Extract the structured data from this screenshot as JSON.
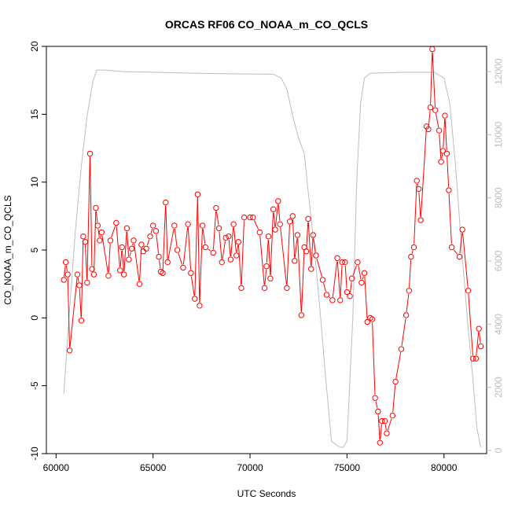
{
  "chart_data": {
    "type": "line",
    "title": "ORCAS RF06 CO_NOAA_m_CO_QCLS",
    "xlabel": "UTC Seconds",
    "ylabel": "CO_NOAA_m_CO_QCLS",
    "xlim": [
      59500,
      82200
    ],
    "ylim": [
      -10,
      20
    ],
    "y2lim": [
      -100,
      12800
    ],
    "x_ticks": [
      60000,
      65000,
      70000,
      75000,
      80000
    ],
    "y_ticks": [
      -10,
      -5,
      0,
      5,
      10,
      15,
      20
    ],
    "y2_ticks": [
      0,
      2000,
      4000,
      6000,
      8000,
      10000,
      12000
    ],
    "grid": false,
    "colors": {
      "series": "#ff0000",
      "altitude": "#bebebe"
    },
    "series": [
      {
        "marker": "circle-open",
        "points": [
          [
            60400,
            2.8
          ],
          [
            60500,
            4.1
          ],
          [
            60600,
            3.2
          ],
          [
            60700,
            -2.4
          ],
          [
            61100,
            3.2
          ],
          [
            61200,
            2.4
          ],
          [
            61300,
            -0.2
          ],
          [
            61400,
            6.0
          ],
          [
            61500,
            5.6
          ],
          [
            61600,
            2.6
          ],
          [
            61750,
            12.1
          ],
          [
            61850,
            3.6
          ],
          [
            61950,
            3.2
          ],
          [
            62050,
            8.1
          ],
          [
            62150,
            6.8
          ],
          [
            62250,
            5.7
          ],
          [
            62350,
            6.3
          ],
          [
            62700,
            3.1
          ],
          [
            62800,
            5.7
          ],
          [
            63100,
            7.0
          ],
          [
            63300,
            3.5
          ],
          [
            63400,
            5.2
          ],
          [
            63500,
            3.2
          ],
          [
            63650,
            6.6
          ],
          [
            63750,
            4.3
          ],
          [
            63900,
            5.1
          ],
          [
            64000,
            5.7
          ],
          [
            64300,
            2.5
          ],
          [
            64400,
            5.4
          ],
          [
            64500,
            4.9
          ],
          [
            64650,
            5.1
          ],
          [
            64850,
            6.0
          ],
          [
            65000,
            6.8
          ],
          [
            65150,
            6.4
          ],
          [
            65300,
            4.5
          ],
          [
            65400,
            3.4
          ],
          [
            65500,
            3.3
          ],
          [
            65650,
            8.5
          ],
          [
            65750,
            4.1
          ],
          [
            66100,
            6.8
          ],
          [
            66250,
            5.0
          ],
          [
            66550,
            3.7
          ],
          [
            66800,
            6.9
          ],
          [
            66950,
            3.3
          ],
          [
            67150,
            1.4
          ],
          [
            67300,
            9.1
          ],
          [
            67400,
            0.9
          ],
          [
            67550,
            6.8
          ],
          [
            67700,
            5.2
          ],
          [
            68100,
            4.8
          ],
          [
            68250,
            8.1
          ],
          [
            68400,
            6.6
          ],
          [
            68550,
            4.1
          ],
          [
            68750,
            5.9
          ],
          [
            68900,
            6.0
          ],
          [
            69000,
            4.3
          ],
          [
            69150,
            6.9
          ],
          [
            69300,
            4.6
          ],
          [
            69400,
            5.6
          ],
          [
            69550,
            2.2
          ],
          [
            69700,
            7.4
          ],
          [
            70000,
            7.4
          ],
          [
            70150,
            7.4
          ],
          [
            70500,
            6.3
          ],
          [
            70750,
            2.2
          ],
          [
            70850,
            3.8
          ],
          [
            70950,
            6.0
          ],
          [
            71050,
            2.9
          ],
          [
            71200,
            8.0
          ],
          [
            71300,
            6.5
          ],
          [
            71450,
            8.6
          ],
          [
            71550,
            6.9
          ],
          [
            71900,
            2.2
          ],
          [
            72050,
            7.1
          ],
          [
            72200,
            7.5
          ],
          [
            72300,
            4.2
          ],
          [
            72450,
            6.1
          ],
          [
            72650,
            0.2
          ],
          [
            72800,
            5.2
          ],
          [
            72900,
            4.9
          ],
          [
            73000,
            7.3
          ],
          [
            73150,
            3.6
          ],
          [
            73250,
            6.1
          ],
          [
            73400,
            4.6
          ],
          [
            73750,
            2.8
          ],
          [
            73950,
            1.7
          ],
          [
            74250,
            1.3
          ],
          [
            74500,
            4.4
          ],
          [
            74650,
            1.3
          ],
          [
            74750,
            4.1
          ],
          [
            74900,
            4.1
          ],
          [
            75000,
            1.9
          ],
          [
            75150,
            1.6
          ],
          [
            75250,
            2.9
          ],
          [
            75550,
            4.1
          ],
          [
            75750,
            2.6
          ],
          [
            75900,
            3.3
          ],
          [
            76050,
            -0.3
          ],
          [
            76200,
            0.0
          ],
          [
            76300,
            -0.1
          ],
          [
            76450,
            -5.9
          ],
          [
            76600,
            -6.9
          ],
          [
            76700,
            -9.2
          ],
          [
            76800,
            -7.6
          ],
          [
            76950,
            -7.6
          ],
          [
            77050,
            -8.5
          ],
          [
            77350,
            -7.2
          ],
          [
            77500,
            -4.7
          ],
          [
            77800,
            -2.3
          ],
          [
            78050,
            0.2
          ],
          [
            78200,
            2.0
          ],
          [
            78300,
            4.5
          ],
          [
            78450,
            5.2
          ],
          [
            78600,
            10.1
          ],
          [
            78700,
            9.5
          ],
          [
            78800,
            7.2
          ],
          [
            79100,
            14.1
          ],
          [
            79200,
            13.9
          ],
          [
            79300,
            15.5
          ],
          [
            79400,
            19.8
          ],
          [
            79550,
            15.3
          ],
          [
            79750,
            13.8
          ],
          [
            79850,
            11.5
          ],
          [
            79950,
            12.3
          ],
          [
            80050,
            14.9
          ],
          [
            80150,
            12.1
          ],
          [
            80250,
            9.4
          ],
          [
            80400,
            5.2
          ],
          [
            80800,
            4.5
          ],
          [
            80950,
            6.5
          ],
          [
            81250,
            2.0
          ],
          [
            81500,
            -3.0
          ],
          [
            81650,
            -3.0
          ],
          [
            81800,
            -0.8
          ],
          [
            81900,
            -2.1
          ]
        ]
      },
      {
        "axis": "right",
        "points": [
          [
            60400,
            1800
          ],
          [
            60700,
            4500
          ],
          [
            61000,
            7000
          ],
          [
            61300,
            9000
          ],
          [
            61600,
            10600
          ],
          [
            61900,
            11700
          ],
          [
            62100,
            12050
          ],
          [
            62500,
            12050
          ],
          [
            63500,
            12000
          ],
          [
            65000,
            11980
          ],
          [
            67000,
            11950
          ],
          [
            69000,
            11930
          ],
          [
            71200,
            11920
          ],
          [
            71600,
            11800
          ],
          [
            71900,
            11450
          ],
          [
            72200,
            10600
          ],
          [
            72500,
            9900
          ],
          [
            72800,
            9400
          ],
          [
            73000,
            8200
          ],
          [
            73300,
            6500
          ],
          [
            73600,
            4500
          ],
          [
            73900,
            2300
          ],
          [
            74200,
            300
          ],
          [
            74500,
            150
          ],
          [
            74700,
            100
          ],
          [
            74800,
            100
          ],
          [
            75000,
            300
          ],
          [
            75300,
            4200
          ],
          [
            75500,
            8500
          ],
          [
            75700,
            11000
          ],
          [
            75900,
            11800
          ],
          [
            76200,
            11950
          ],
          [
            78000,
            11980
          ],
          [
            79500,
            11980
          ],
          [
            80000,
            11800
          ],
          [
            80300,
            11000
          ],
          [
            80600,
            9000
          ],
          [
            80900,
            6500
          ],
          [
            81200,
            4200
          ],
          [
            81500,
            2200
          ],
          [
            81700,
            700
          ],
          [
            81900,
            100
          ]
        ]
      }
    ]
  }
}
